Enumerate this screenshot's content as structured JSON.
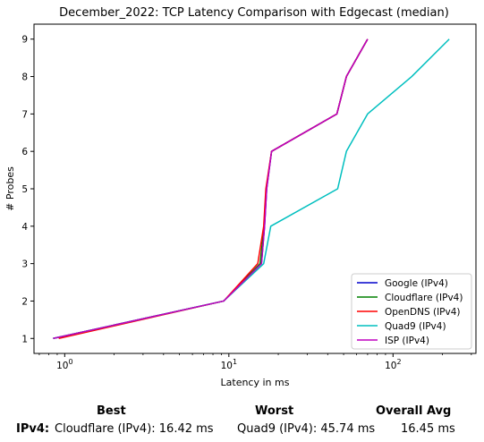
{
  "chart_data": {
    "type": "line",
    "title": "December_2022: TCP Latency Comparison with Edgecast (median)",
    "xlabel": "Latency in ms",
    "ylabel": "# Probes",
    "xscale": "log",
    "xlim": [
      0.65,
      320
    ],
    "ylim": [
      0.6,
      9.4
    ],
    "x_ticks": [
      {
        "value": 1,
        "base": "10",
        "exp": "0"
      },
      {
        "value": 10,
        "base": "10",
        "exp": "1"
      },
      {
        "value": 100,
        "base": "10",
        "exp": "2"
      }
    ],
    "y_ticks": [
      "1",
      "2",
      "3",
      "4",
      "5",
      "6",
      "7",
      "8",
      "9"
    ],
    "legend_position": "lower-right",
    "grid": false,
    "series": [
      {
        "name": "Google (IPv4)",
        "color": "#0000cc",
        "x": [
          0.85,
          9.3,
          15.8,
          16.5,
          17.0,
          18.2,
          45.5,
          52.0,
          70.0
        ],
        "y": [
          1,
          2,
          3,
          4,
          5,
          6,
          7,
          8,
          9
        ]
      },
      {
        "name": "Cloudflare (IPv4)",
        "color": "#008000",
        "x": [
          0.85,
          9.3,
          15.5,
          16.4,
          16.9,
          18.2,
          45.5,
          52.0,
          70.0
        ],
        "y": [
          1,
          2,
          3,
          4,
          5,
          6,
          7,
          8,
          9
        ]
      },
      {
        "name": "OpenDNS (IPv4)",
        "color": "#ff0000",
        "x": [
          0.92,
          9.3,
          15.0,
          16.3,
          16.8,
          18.2,
          45.5,
          52.0,
          70.0
        ],
        "y": [
          1,
          2,
          3,
          4,
          5,
          6,
          7,
          8,
          9
        ]
      },
      {
        "name": "Quad9 (IPv4)",
        "color": "#00bfbf",
        "x": [
          0.85,
          9.3,
          16.3,
          18.0,
          46.0,
          52.0,
          70.0,
          130.0,
          220.0
        ],
        "y": [
          1,
          2,
          3,
          4,
          5,
          6,
          7,
          8,
          9
        ]
      },
      {
        "name": "ISP (IPv4)",
        "color": "#bf00bf",
        "x": [
          0.85,
          9.3,
          15.8,
          16.5,
          17.0,
          18.2,
          45.5,
          52.0,
          70.0
        ],
        "y": [
          1,
          2,
          3,
          4,
          5,
          6,
          7,
          8,
          9
        ]
      }
    ]
  },
  "summary": {
    "headers": {
      "best": "Best",
      "worst": "Worst",
      "avg": "Overall Avg"
    },
    "row_label": "IPv4:",
    "best": "Cloudflare (IPv4): 16.42 ms",
    "worst": "Quad9 (IPv4): 45.74 ms",
    "avg": "16.45 ms"
  }
}
